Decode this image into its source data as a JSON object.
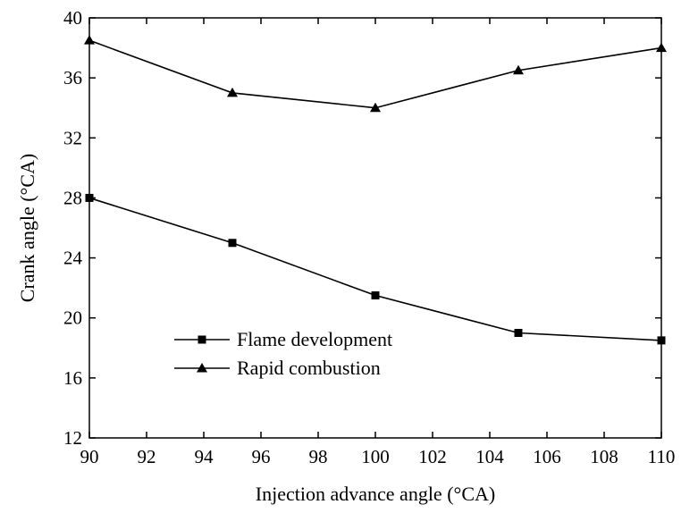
{
  "chart_data": {
    "type": "line",
    "title": "",
    "xlabel": "Injection advance angle  (°CA)",
    "ylabel": "Crank angle (°CA)",
    "xlim": [
      90,
      110
    ],
    "ylim": [
      12,
      40
    ],
    "xticks": [
      "90",
      "92",
      "94",
      "96",
      "98",
      "100",
      "102",
      "104",
      "106",
      "108",
      "110"
    ],
    "yticks": [
      "12",
      "16",
      "20",
      "24",
      "28",
      "32",
      "36",
      "40"
    ],
    "legend_position": "lower-left",
    "grid": false,
    "series": [
      {
        "name": "Flame development",
        "marker": "square",
        "x": [
          90,
          95,
          100,
          105,
          110
        ],
        "y": [
          28,
          25,
          21.5,
          19,
          18.5
        ]
      },
      {
        "name": "Rapid combustion",
        "marker": "triangle",
        "x": [
          90,
          95,
          100,
          105,
          110
        ],
        "y": [
          38.5,
          35,
          34,
          36.5,
          38
        ]
      }
    ]
  }
}
